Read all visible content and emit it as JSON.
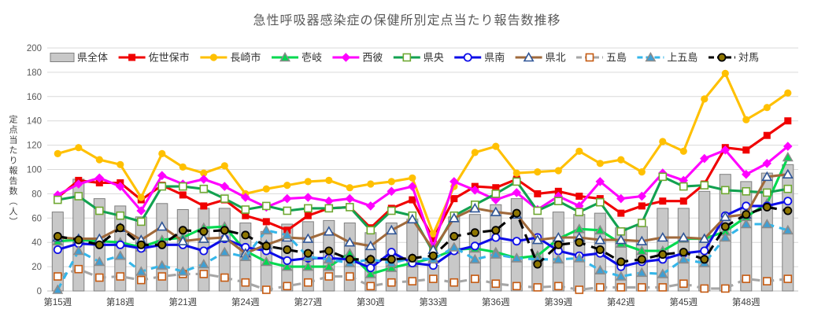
{
  "title": "急性呼吸器感染症の保健所別定点当たり報告数推移",
  "chart_data": {
    "type": "combo-bar-line",
    "ylabel": "定点当たり報告数（人）",
    "ylim": [
      0,
      200
    ],
    "y_ticks": [
      0,
      20,
      40,
      60,
      80,
      100,
      120,
      140,
      160,
      180,
      200
    ],
    "weeks": [
      15,
      16,
      17,
      18,
      19,
      20,
      21,
      22,
      23,
      24,
      25,
      26,
      27,
      28,
      29,
      30,
      31,
      32,
      33,
      34,
      35,
      36,
      37,
      38,
      39,
      40,
      41,
      42,
      43,
      44,
      45,
      46,
      47,
      48,
      49,
      50
    ],
    "x_tick_weeks": [
      15,
      18,
      21,
      24,
      27,
      30,
      33,
      36,
      39,
      42,
      45,
      48
    ],
    "x_tick_labels": [
      "第15週",
      "第18週",
      "第21週",
      "第24週",
      "第27週",
      "第30週",
      "第33週",
      "第36週",
      "第39週",
      "第42週",
      "第45週",
      "第48週"
    ],
    "grid_color": "#D9D9D9",
    "axis_text_color": "#595959",
    "x_text_color": "#404040",
    "legend_position": "top",
    "bar_series": {
      "name": "県全体",
      "key": "kenzentai",
      "fill": "#C8C8C8",
      "stroke": "#7F7F7F",
      "values": [
        65,
        92,
        76,
        70,
        61,
        72,
        67,
        68,
        68,
        56,
        49,
        55,
        57,
        58,
        56,
        48,
        56,
        59,
        21,
        61,
        63,
        71,
        76,
        60,
        65,
        63,
        64,
        52,
        53,
        68,
        68,
        82,
        96,
        90,
        97,
        104
      ]
    },
    "line_series": [
      {
        "name": "佐世保市",
        "key": "sasebo",
        "color": "#F00000",
        "dash": null,
        "marker": "square",
        "marker_fill": "#F00000",
        "marker_stroke": null,
        "values": [
          77,
          91,
          89,
          89,
          75,
          87,
          79,
          70,
          75,
          62,
          57,
          50,
          62,
          68,
          69,
          52,
          68,
          75,
          43,
          76,
          86,
          85,
          92,
          80,
          82,
          78,
          76,
          64,
          70,
          74,
          74,
          88,
          118,
          116,
          128,
          140
        ]
      },
      {
        "name": "長崎市",
        "key": "nagasaki",
        "color": "#FFC000",
        "dash": null,
        "marker": "circle",
        "marker_fill": "#FFC000",
        "marker_stroke": null,
        "values": [
          113,
          118,
          108,
          104,
          77,
          113,
          102,
          97,
          103,
          80,
          84,
          87,
          90,
          91,
          85,
          88,
          90,
          93,
          47,
          86,
          114,
          119,
          97,
          98,
          99,
          115,
          105,
          108,
          98,
          123,
          115,
          158,
          179,
          141,
          151,
          163
        ]
      },
      {
        "name": "壱岐",
        "key": "iki",
        "color": "#00D94F",
        "dash": null,
        "marker": "triangle",
        "marker_fill": "#00D94F",
        "marker_stroke": "#898989",
        "values": [
          41,
          42,
          41,
          40,
          36,
          42,
          44,
          52,
          53,
          33,
          24,
          20,
          20,
          20,
          31,
          14,
          19,
          23,
          27,
          34,
          35,
          32,
          27,
          29,
          43,
          51,
          50,
          39,
          33,
          33,
          43,
          43,
          49,
          61,
          72,
          110
        ]
      },
      {
        "name": "西彼",
        "key": "seihi",
        "color": "#FF00FF",
        "dash": null,
        "marker": "diamond",
        "marker_fill": "#FF00FF",
        "marker_stroke": null,
        "values": [
          79,
          88,
          93,
          86,
          66,
          95,
          88,
          92,
          86,
          77,
          69,
          76,
          77,
          74,
          76,
          70,
          82,
          86,
          36,
          90,
          83,
          75,
          81,
          67,
          78,
          70,
          90,
          76,
          78,
          97,
          91,
          109,
          116,
          96,
          105,
          119
        ]
      },
      {
        "name": "県央",
        "key": "keno",
        "color": "#12A150",
        "dash": null,
        "marker": "square",
        "marker_fill": "#FFFFFF",
        "marker_stroke": "#6FA832",
        "values": [
          75,
          78,
          66,
          62,
          57,
          86,
          86,
          84,
          76,
          67,
          70,
          66,
          68,
          68,
          69,
          50,
          66,
          62,
          32,
          62,
          71,
          80,
          90,
          66,
          74,
          65,
          73,
          49,
          56,
          94,
          86,
          87,
          83,
          82,
          81,
          84
        ]
      },
      {
        "name": "県南",
        "key": "kennan",
        "color": "#0D0DE8",
        "dash": null,
        "marker": "circle",
        "marker_fill": "#FFFFFF",
        "marker_stroke": "#0D0DE8",
        "values": [
          34,
          39,
          38,
          38,
          35,
          38,
          38,
          33,
          43,
          36,
          33,
          25,
          27,
          27,
          26,
          19,
          32,
          23,
          21,
          33,
          37,
          44,
          41,
          44,
          33,
          29,
          31,
          20,
          24,
          26,
          31,
          33,
          62,
          70,
          70,
          74
        ]
      },
      {
        "name": "県北",
        "key": "kenboku",
        "color": "#A06A3C",
        "dash": null,
        "marker": "triangle",
        "marker_fill": "#FFFFFF",
        "marker_stroke": "#2F5597",
        "values": [
          44,
          43,
          43,
          52,
          42,
          53,
          41,
          43,
          44,
          31,
          38,
          44,
          43,
          49,
          40,
          37,
          50,
          59,
          34,
          60,
          68,
          65,
          63,
          42,
          44,
          44,
          42,
          42,
          41,
          44,
          44,
          43,
          61,
          63,
          94,
          96
        ]
      },
      {
        "name": "五島",
        "key": "goto",
        "color": "#A6A6A6",
        "dash": "11 7",
        "marker": "square",
        "marker_fill": "#FFFFFF",
        "marker_stroke": "#C55A11",
        "values": [
          12,
          18,
          11,
          12,
          9,
          12,
          14,
          14,
          11,
          7,
          1,
          4,
          7,
          12,
          12,
          4,
          7,
          8,
          10,
          7,
          10,
          6,
          4,
          3,
          4,
          1,
          3,
          3,
          3,
          3,
          6,
          2,
          2,
          10,
          8,
          10
        ]
      },
      {
        "name": "上五島",
        "key": "kamigoto",
        "color": "#35B6E9",
        "dash": "9 7",
        "marker": "triangle",
        "marker_fill": "#3E9FD4",
        "marker_stroke": "#8C8C8C",
        "values": [
          1,
          33,
          24,
          29,
          16,
          21,
          16,
          22,
          32,
          28,
          50,
          46,
          28,
          26,
          23,
          26,
          23,
          27,
          26,
          36,
          26,
          30,
          27,
          26,
          26,
          27,
          17,
          12,
          15,
          14,
          26,
          23,
          44,
          55,
          55,
          50
        ]
      },
      {
        "name": "対馬",
        "key": "tsushima",
        "color": "#000000",
        "dash": "12 8",
        "marker": "circle",
        "marker_fill": "#8E7600",
        "marker_stroke": "#000000",
        "values": [
          45,
          42,
          38,
          52,
          38,
          38,
          50,
          49,
          50,
          46,
          37,
          34,
          31,
          33,
          26,
          26,
          26,
          27,
          29,
          45,
          48,
          50,
          64,
          22,
          38,
          40,
          34,
          24,
          26,
          30,
          32,
          26,
          53,
          63,
          69,
          66
        ]
      }
    ]
  }
}
